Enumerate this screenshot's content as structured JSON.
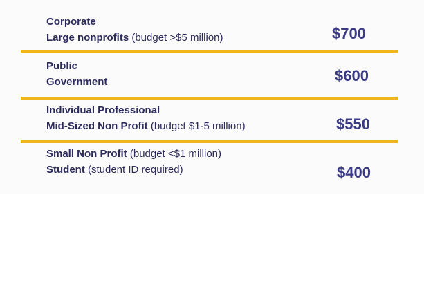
{
  "colors": {
    "rule": "#f1b51c",
    "text": "#2c2a5c",
    "price": "#3a3a85"
  },
  "tiers": [
    {
      "line1_bold": "Corporate",
      "line1_note": "",
      "line2_bold": "Large nonprofits",
      "line2_note": " (budget >$5 million)",
      "price": "$700"
    },
    {
      "line1_bold": "Public",
      "line1_note": "",
      "line2_bold": "Government",
      "line2_note": "",
      "price": "$600"
    },
    {
      "line1_bold": "Individual Professional",
      "line1_note": "",
      "line2_bold": "Mid-Sized Non Profit",
      "line2_note": " (budget $1-5 million)",
      "price": "$550"
    },
    {
      "line1_bold": "Small Non Profit",
      "line1_note": " (budget <$1 million)",
      "line2_bold": "Student",
      "line2_note": " (student ID required)",
      "price": "$400"
    }
  ]
}
